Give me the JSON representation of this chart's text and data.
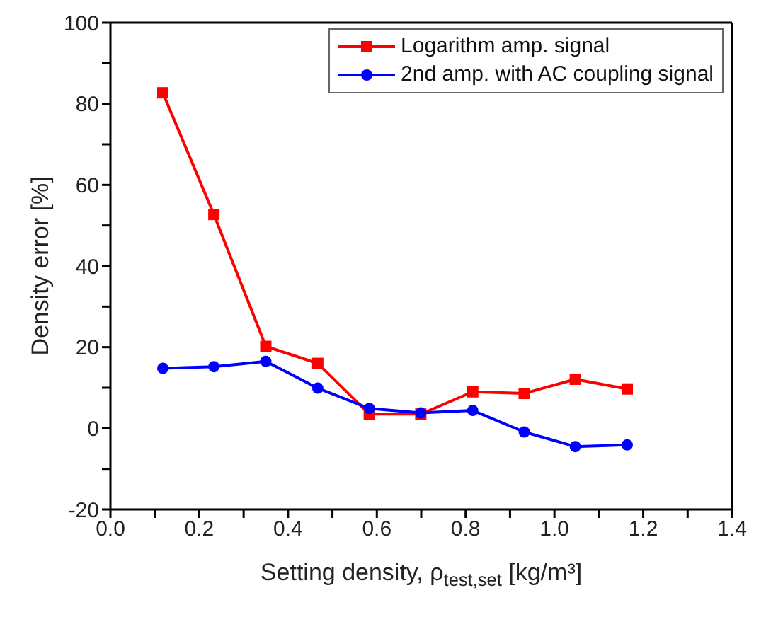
{
  "chart_data": {
    "type": "line",
    "xlabel": "Setting density, ρ$_{test,set}$ [kg/m³]",
    "ylabel": "Density error [%]",
    "x": [
      0.118,
      0.233,
      0.35,
      0.467,
      0.583,
      0.699,
      0.816,
      0.932,
      1.047,
      1.164
    ],
    "series": [
      {
        "name": "Logarithm amp. signal",
        "color": "#ff0000",
        "marker": "square",
        "values": [
          82.7,
          52.7,
          20.2,
          16.0,
          3.5,
          3.5,
          9.0,
          8.6,
          12.1,
          9.7
        ]
      },
      {
        "name": "2nd amp. with AC coupling signal",
        "color": "#0000ff",
        "marker": "circle",
        "values": [
          14.8,
          15.2,
          16.5,
          9.9,
          4.9,
          3.8,
          4.4,
          -0.9,
          -4.5,
          -4.1
        ]
      }
    ],
    "xlim": [
      0,
      1.4
    ],
    "xticks": [
      {
        "value": 0,
        "label": "0.0"
      },
      {
        "value": 0.1,
        "label": null
      },
      {
        "value": 0.2,
        "label": "0.2"
      },
      {
        "value": 0.3,
        "label": null
      },
      {
        "value": 0.4,
        "label": "0.4"
      },
      {
        "value": 0.5,
        "label": null
      },
      {
        "value": 0.6,
        "label": "0.6"
      },
      {
        "value": 0.7,
        "label": null
      },
      {
        "value": 0.8,
        "label": "0.8"
      },
      {
        "value": 0.9,
        "label": null
      },
      {
        "value": 1,
        "label": "1.0"
      },
      {
        "value": 1.1,
        "label": null
      },
      {
        "value": 1.2,
        "label": "1.2"
      },
      {
        "value": 1.3,
        "label": null
      },
      {
        "value": 1.4,
        "label": "1.4"
      }
    ],
    "ylim": [
      -20,
      100
    ],
    "yticks": [
      -20,
      {
        "value": -10,
        "label": null
      },
      0,
      {
        "value": 10,
        "label": null
      },
      20,
      {
        "value": 30,
        "label": null
      },
      40,
      {
        "value": 50,
        "label": null
      },
      60,
      {
        "value": 70,
        "label": null
      },
      80,
      {
        "value": 90,
        "label": null
      },
      100
    ],
    "grid": false,
    "legend": "top right",
    "line_style": "solid"
  }
}
